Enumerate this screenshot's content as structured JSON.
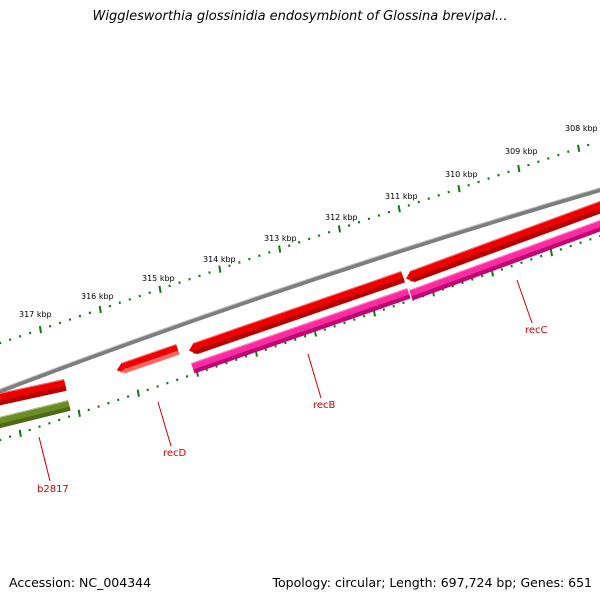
{
  "title": "Wigglesworthia glossinidia endosymbiont of Glossina brevipal...",
  "footer": {
    "accession": "Accession: NC_004344",
    "summary": "Topology: circular; Length: 697,724 bp; Genes: 651"
  },
  "scale_labels": [
    "317 kbp",
    "316 kbp",
    "315 kbp",
    "314 kbp",
    "313 kbp",
    "312 kbp",
    "311 kbp",
    "310 kbp",
    "309 kbp",
    "308 kbp"
  ],
  "genes": [
    "b2817",
    "recD",
    "recB",
    "recC"
  ],
  "colors": {
    "backbone": "#7d7d7d",
    "gene_forward": "#ee0000",
    "gene_forward_shadow": "#ff7a6e",
    "cds_pink": "#ff2aa0",
    "cds_pink_shadow": "#b0006a",
    "cds_olive": "#6b8e23",
    "tick": "#117711",
    "gene_label": "#cc0000"
  }
}
